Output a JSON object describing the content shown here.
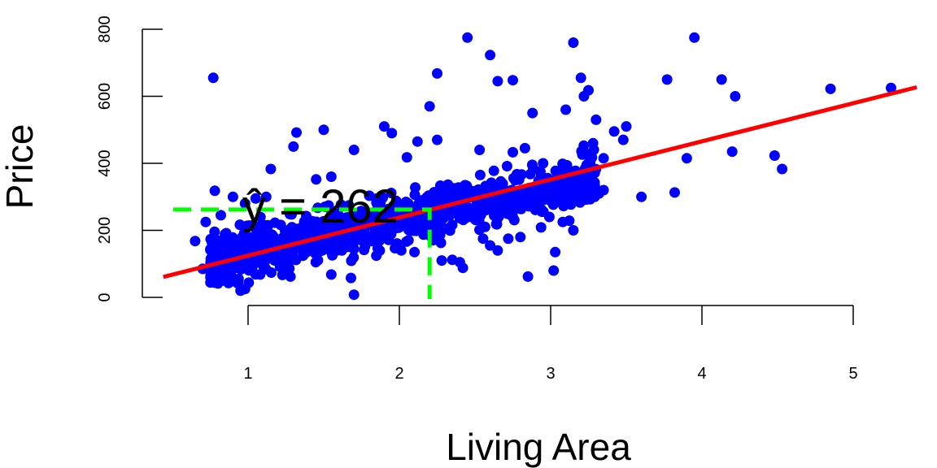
{
  "chart_data": {
    "type": "scatter",
    "title": "",
    "xlabel": "Living Area",
    "ylabel": "Price",
    "xlim": [
      0.44,
      5.42
    ],
    "ylim": [
      -31,
      849
    ],
    "x_ticks": [
      1,
      2,
      3,
      4,
      5
    ],
    "y_ticks": [
      0,
      200,
      400,
      600,
      800
    ],
    "grid": false,
    "legend": "none",
    "point_color": "#0000ff",
    "regression_line": {
      "color": "#ff0000",
      "from": [
        0.44,
        61
      ],
      "to": [
        5.42,
        627
      ]
    },
    "prediction_guide": {
      "color": "#00ff00",
      "x": 2.2,
      "y": 262,
      "label": "ŷ = 262"
    },
    "points": [
      [
        0.77,
        655
      ],
      [
        0.9,
        300
      ],
      [
        0.78,
        318
      ],
      [
        0.82,
        245
      ],
      [
        0.72,
        225
      ],
      [
        0.65,
        168
      ],
      [
        0.7,
        85
      ],
      [
        0.75,
        95
      ],
      [
        0.95,
        20
      ],
      [
        0.98,
        25
      ],
      [
        0.98,
        280
      ],
      [
        1.05,
        295
      ],
      [
        1.12,
        300
      ],
      [
        1.15,
        383
      ],
      [
        1.3,
        450
      ],
      [
        1.32,
        492
      ],
      [
        1.5,
        500
      ],
      [
        1.45,
        352
      ],
      [
        1.55,
        360
      ],
      [
        1.7,
        440
      ],
      [
        1.7,
        8
      ],
      [
        1.68,
        58
      ],
      [
        1.95,
        490
      ],
      [
        1.9,
        510
      ],
      [
        2.05,
        418
      ],
      [
        2.12,
        465
      ],
      [
        2.25,
        470
      ],
      [
        2.25,
        668
      ],
      [
        2.2,
        570
      ],
      [
        2.45,
        775
      ],
      [
        2.53,
        440
      ],
      [
        2.6,
        723
      ],
      [
        2.65,
        645
      ],
      [
        2.75,
        648
      ],
      [
        2.75,
        433
      ],
      [
        2.88,
        550
      ],
      [
        2.83,
        445
      ],
      [
        2.95,
        400
      ],
      [
        3.1,
        560
      ],
      [
        3.15,
        760
      ],
      [
        3.22,
        600
      ],
      [
        3.2,
        655
      ],
      [
        3.25,
        618
      ],
      [
        3.28,
        460
      ],
      [
        3.3,
        530
      ],
      [
        3.35,
        415
      ],
      [
        3.42,
        495
      ],
      [
        3.48,
        470
      ],
      [
        3.5,
        510
      ],
      [
        3.6,
        300
      ],
      [
        3.77,
        650
      ],
      [
        3.82,
        313
      ],
      [
        3.9,
        415
      ],
      [
        3.95,
        775
      ],
      [
        4.13,
        650
      ],
      [
        4.2,
        435
      ],
      [
        4.22,
        600
      ],
      [
        4.48,
        423
      ],
      [
        4.53,
        383
      ],
      [
        4.85,
        622
      ],
      [
        5.25,
        625
      ],
      [
        2.28,
        110
      ],
      [
        2.35,
        112
      ],
      [
        2.4,
        105
      ],
      [
        2.42,
        88
      ],
      [
        2.85,
        62
      ],
      [
        3.02,
        80
      ],
      [
        3.03,
        135
      ],
      [
        3.15,
        200
      ],
      [
        3.08,
        225
      ],
      [
        3.32,
        310
      ],
      [
        3.35,
        320
      ],
      [
        2.72,
        175
      ],
      [
        2.8,
        180
      ],
      [
        2.6,
        155
      ],
      [
        2.65,
        140
      ],
      [
        2.1,
        135
      ],
      [
        1.55,
        68
      ],
      [
        1.28,
        62
      ],
      [
        1.08,
        68
      ],
      [
        0.85,
        75
      ],
      [
        3.25,
        320
      ],
      [
        3.12,
        285
      ],
      [
        3.2,
        350
      ],
      [
        3.05,
        300
      ]
    ]
  }
}
